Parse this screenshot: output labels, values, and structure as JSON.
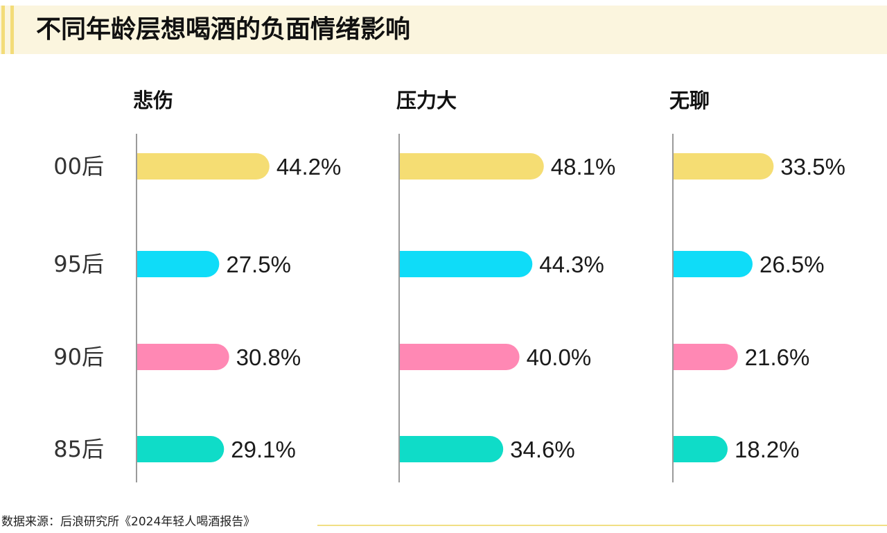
{
  "title": "不同年龄层想喝酒的负面情绪影响",
  "source": "数据来源：后浪研究所《2024年轻人喝酒报告》",
  "colors": {
    "title_bg": "#fbf5de",
    "accent": "#f3dc78",
    "axis": "#9a9a9a",
    "source_line": "#f1df84"
  },
  "chart_data": {
    "type": "bar",
    "orientation": "horizontal",
    "categories": [
      "00后",
      "95后",
      "90后",
      "85后"
    ],
    "category_colors": [
      "#f5dd73",
      "#0fdcf8",
      "#ff88b4",
      "#0fdcc8"
    ],
    "value_format": "percent",
    "panels": [
      {
        "title": "悲伤",
        "values": [
          44.2,
          27.5,
          30.8,
          29.1
        ]
      },
      {
        "title": "压力大",
        "values": [
          48.1,
          44.3,
          40.0,
          34.6
        ]
      },
      {
        "title": "无聊",
        "values": [
          33.5,
          26.5,
          21.6,
          18.2
        ]
      }
    ],
    "xlim": [
      0,
      100
    ],
    "grid": false,
    "legend": "none"
  }
}
